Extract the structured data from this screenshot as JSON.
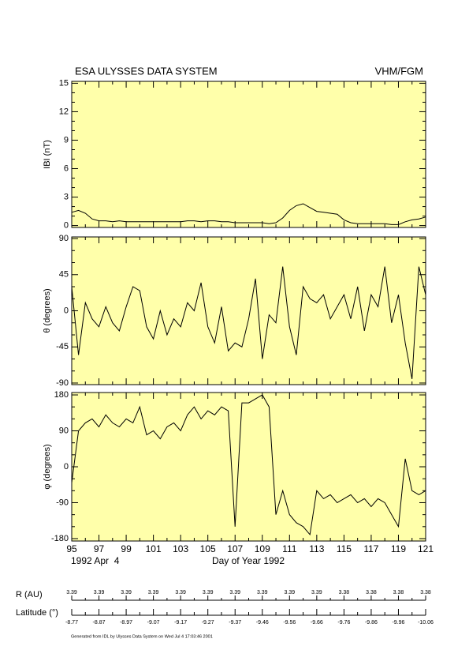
{
  "header": {
    "title": "ESA ULYSSES DATA SYSTEM",
    "instrument": "VHM/FGM"
  },
  "chart_data": [
    {
      "type": "line",
      "y_label": "IBI (nT)",
      "x": [
        95,
        95.5,
        96,
        96.5,
        97,
        97.5,
        98,
        98.5,
        99,
        99.5,
        100,
        100.5,
        101,
        101.5,
        102,
        102.5,
        103,
        103.5,
        104,
        104.5,
        105,
        105.5,
        106,
        106.5,
        107,
        107.5,
        108,
        108.5,
        109,
        109.5,
        110,
        110.5,
        111,
        111.5,
        112,
        112.5,
        113,
        113.5,
        114,
        114.5,
        115,
        115.5,
        116,
        116.5,
        117,
        117.5,
        118,
        118.5,
        119,
        119.5,
        120,
        120.5,
        121
      ],
      "series": [
        {
          "color": "#000000",
          "values": [
            1.4,
            1.6,
            1.3,
            0.7,
            0.5,
            0.5,
            0.4,
            0.5,
            0.4,
            0.4,
            0.4,
            0.4,
            0.4,
            0.4,
            0.4,
            0.4,
            0.4,
            0.5,
            0.5,
            0.4,
            0.5,
            0.5,
            0.4,
            0.4,
            0.3,
            0.3,
            0.3,
            0.3,
            0.3,
            0.2,
            0.3,
            0.8,
            1.6,
            2.1,
            2.3,
            1.9,
            1.5,
            1.4,
            1.3,
            1.2,
            0.6,
            0.3,
            0.2,
            0.2,
            0.2,
            0.2,
            0.2,
            0.1,
            0.1,
            0.4,
            0.6,
            0.7,
            0.9
          ]
        }
      ],
      "xlim": [
        95,
        121
      ],
      "xticks": [
        95,
        97,
        99,
        101,
        103,
        105,
        107,
        109,
        111,
        113,
        115,
        117,
        119,
        121
      ],
      "ylim": [
        -0.2,
        15.2
      ],
      "yticks": [
        0,
        3,
        6,
        9,
        12,
        15
      ],
      "background": "#ffffaa"
    },
    {
      "type": "line",
      "y_label": "θ (degrees)",
      "x": [
        95,
        95.5,
        96,
        96.5,
        97,
        97.5,
        98,
        98.5,
        99,
        99.5,
        100,
        100.5,
        101,
        101.5,
        102,
        102.5,
        103,
        103.5,
        104,
        104.5,
        105,
        105.5,
        106,
        106.5,
        107,
        107.5,
        108,
        108.5,
        109,
        109.5,
        110,
        110.5,
        111,
        111.5,
        112,
        112.5,
        113,
        113.5,
        114,
        114.5,
        115,
        115.5,
        116,
        116.5,
        117,
        117.5,
        118,
        118.5,
        119,
        119.5,
        120,
        120.5,
        121
      ],
      "series": [
        {
          "color": "#000000",
          "values": [
            30,
            -55,
            10,
            -10,
            -20,
            5,
            -15,
            -25,
            5,
            30,
            25,
            -20,
            -35,
            0,
            -30,
            -10,
            -20,
            10,
            0,
            35,
            -20,
            -40,
            5,
            -50,
            -40,
            -45,
            -10,
            40,
            -60,
            -5,
            -15,
            55,
            -20,
            -55,
            30,
            15,
            10,
            20,
            -10,
            5,
            20,
            -10,
            30,
            -25,
            20,
            5,
            55,
            -15,
            20,
            -40,
            -85,
            55,
            20
          ]
        }
      ],
      "xlim": [
        95,
        121
      ],
      "xticks": [
        95,
        97,
        99,
        101,
        103,
        105,
        107,
        109,
        111,
        113,
        115,
        117,
        119,
        121
      ],
      "ylim": [
        -92,
        92
      ],
      "yticks": [
        -90,
        -45,
        0,
        45,
        90
      ],
      "background": "#ffffaa"
    },
    {
      "type": "line",
      "y_label": "φ (degrees)",
      "x_label": "Day of Year 1992",
      "date_label": "1992 Apr  4",
      "x": [
        95,
        95.5,
        96,
        96.5,
        97,
        97.5,
        98,
        98.5,
        99,
        99.5,
        100,
        100.5,
        101,
        101.5,
        102,
        102.5,
        103,
        103.5,
        104,
        104.5,
        105,
        105.5,
        106,
        106.5,
        107,
        107.5,
        108,
        108.5,
        109,
        109.5,
        110,
        110.5,
        111,
        111.5,
        112,
        112.5,
        113,
        113.5,
        114,
        114.5,
        115,
        115.5,
        116,
        116.5,
        117,
        117.5,
        118,
        118.5,
        119,
        119.5,
        120,
        120.5,
        121
      ],
      "series": [
        {
          "color": "#000000",
          "values": [
            -40,
            90,
            110,
            120,
            100,
            130,
            110,
            100,
            120,
            110,
            150,
            80,
            90,
            70,
            100,
            110,
            90,
            130,
            150,
            120,
            140,
            130,
            150,
            140,
            -150,
            160,
            160,
            170,
            180,
            150,
            -120,
            -60,
            -120,
            -140,
            -150,
            -170,
            -60,
            -80,
            -70,
            -90,
            -80,
            -70,
            -90,
            -80,
            -100,
            -80,
            -90,
            -120,
            -150,
            20,
            -60,
            -70,
            -60
          ]
        }
      ],
      "xlim": [
        95,
        121
      ],
      "xticks": [
        95,
        97,
        99,
        101,
        103,
        105,
        107,
        109,
        111,
        113,
        115,
        117,
        119,
        121
      ],
      "ylim": [
        -186,
        186
      ],
      "yticks": [
        -180,
        -90,
        0,
        90,
        180
      ],
      "background": "#ffffaa"
    }
  ],
  "ephemeris": {
    "r_label": "R (AU)",
    "lat_label": "Latitude (°)",
    "r": [
      3.39,
      3.39,
      3.39,
      3.39,
      3.39,
      3.39,
      3.39,
      3.39,
      3.39,
      3.39,
      3.38,
      3.38,
      3.38,
      3.38
    ],
    "lat": [
      -8.77,
      -8.87,
      -8.97,
      -9.07,
      -9.17,
      -9.27,
      -9.37,
      -9.46,
      -9.56,
      -9.66,
      -9.76,
      -9.86,
      -9.96,
      -10.06
    ]
  },
  "footer": "Generated from IDL by Ulysses Data System on Wed Jul  4 17:03:46 2001"
}
